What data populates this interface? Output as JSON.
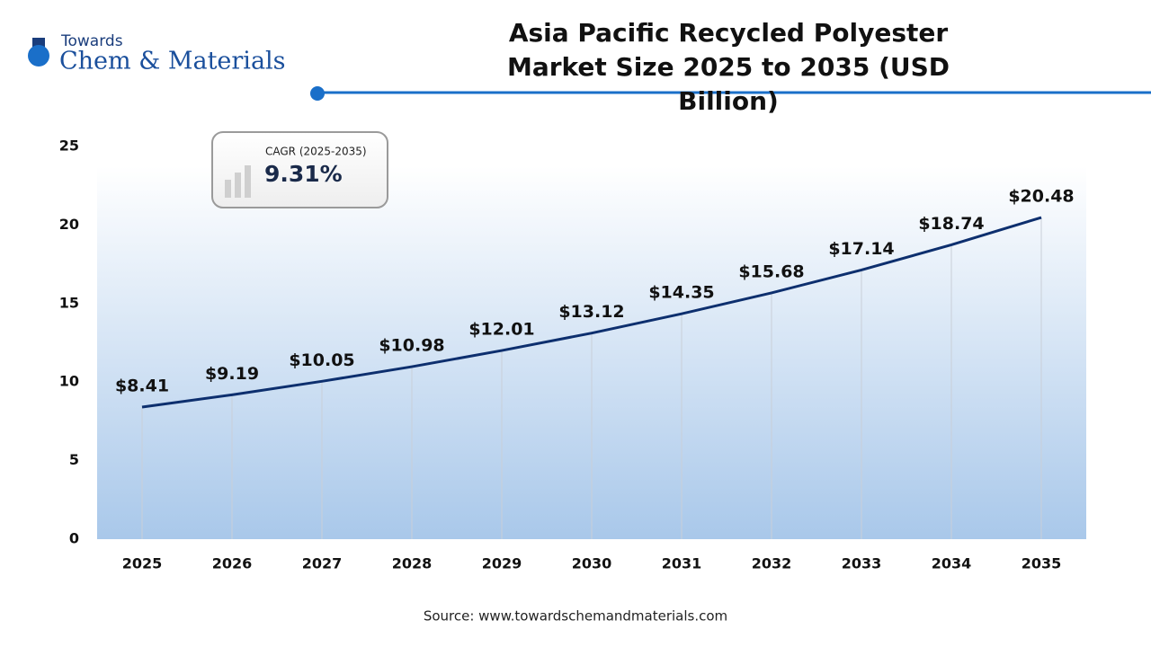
{
  "logo": {
    "top": "Towards",
    "bottom": "Chem & Materials"
  },
  "chart_data": {
    "type": "line",
    "title": "Asia Pacific Recycled Polyester Market Size 2025 to 2035 (USD Billion)",
    "categories": [
      "2025",
      "2026",
      "2027",
      "2028",
      "2029",
      "2030",
      "2031",
      "2032",
      "2033",
      "2034",
      "2035"
    ],
    "values": [
      8.41,
      9.19,
      10.05,
      10.98,
      12.01,
      13.12,
      14.35,
      15.68,
      17.14,
      18.74,
      20.48
    ],
    "value_labels": [
      "$8.41",
      "$9.19",
      "$10.05",
      "$10.98",
      "$12.01",
      "$13.12",
      "$14.35",
      "$15.68",
      "$17.14",
      "$18.74",
      "$20.48"
    ],
    "color": "#0d2f6e",
    "ylim": [
      0,
      25
    ],
    "yticks": [
      0,
      5,
      10,
      15,
      20,
      25
    ],
    "annotation": {
      "label": "CAGR (2025-2035)",
      "value": "9.31%"
    },
    "source": "Source: www.towardschemandmaterials.com"
  }
}
